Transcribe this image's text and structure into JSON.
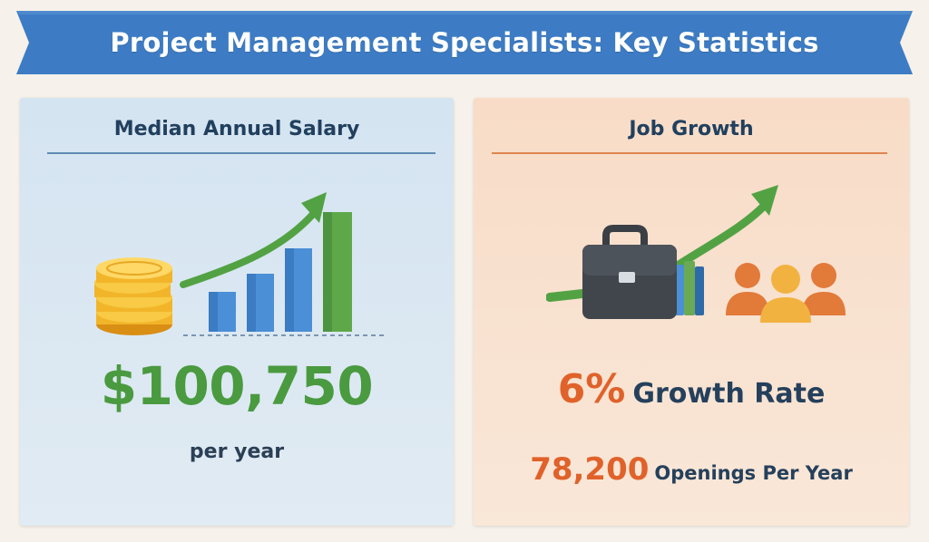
{
  "banner": {
    "title": "Project Management Specialists: Key Statistics",
    "color": "#3d7cc4"
  },
  "salary_panel": {
    "heading": "Median Annual Salary",
    "value": "$100,750",
    "unit_text": "per year",
    "icons": [
      "coin-stack-icon",
      "bar-chart-icon",
      "trend-up-arrow-icon"
    ],
    "value_color": "#4a9a40"
  },
  "growth_panel": {
    "heading": "Job Growth",
    "growth_value": "6%",
    "growth_label": "Growth Rate",
    "openings_value": "78,200",
    "openings_label": "Openings Per Year",
    "icons": [
      "briefcase-icon",
      "books-icon",
      "people-group-icon",
      "trend-up-arrow-icon"
    ],
    "accent_color": "#e0622a"
  }
}
